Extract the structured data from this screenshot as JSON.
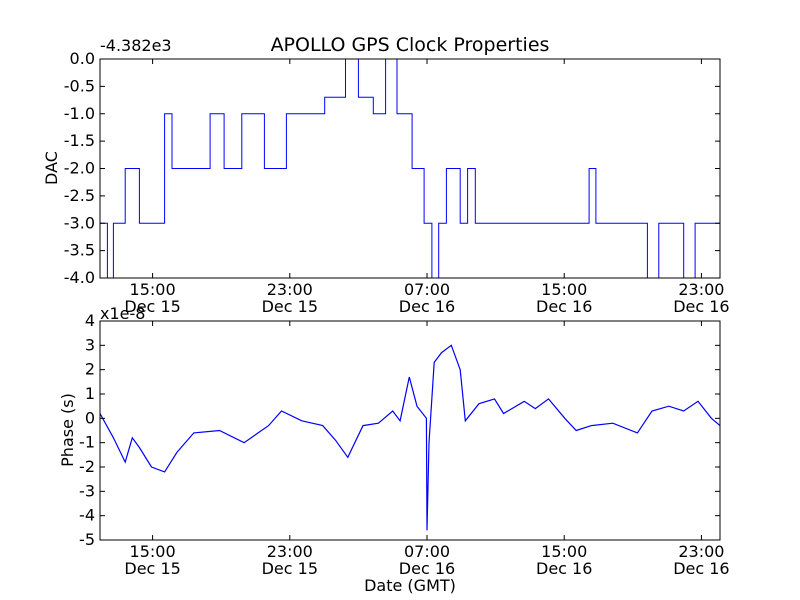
{
  "figure": {
    "title": "APOLLO GPS Clock Properties",
    "xlabel": "Date (GMT)"
  },
  "chart_data": [
    {
      "type": "line",
      "name": "dac",
      "ylabel": "DAC",
      "offset_label": "-4.382e3",
      "ylim": [
        -4.0,
        0.0
      ],
      "yticks": [
        "0.0",
        "-0.5",
        "-1.0",
        "-1.5",
        "-2.0",
        "-2.5",
        "-3.0",
        "-3.5",
        "-4.0"
      ],
      "ytick_values": [
        0.0,
        -0.5,
        -1.0,
        -1.5,
        -2.0,
        -2.5,
        -3.0,
        -3.5,
        -4.0
      ],
      "xticks": [
        {
          "time": "15:00",
          "date": "Dec 15"
        },
        {
          "time": "23:00",
          "date": "Dec 15"
        },
        {
          "time": "07:00",
          "date": "Dec 16"
        },
        {
          "time": "15:00",
          "date": "Dec 16"
        },
        {
          "time": "23:00",
          "date": "Dec 16"
        }
      ],
      "xlim": [
        "Dec 15 11:56",
        "Dec 17 00:05"
      ],
      "color": "#0000ff",
      "grid": false,
      "x": [
        "Dec 15 11:56",
        "Dec 15 12:22",
        "Dec 15 12:43",
        "Dec 15 13:24",
        "Dec 15 14:14",
        "Dec 15 15:42",
        "Dec 15 16:08",
        "Dec 15 16:51",
        "Dec 15 18:21",
        "Dec 15 19:10",
        "Dec 15 20:12",
        "Dec 15 21:31",
        "Dec 15 22:48",
        "Dec 15 23:42",
        "Dec 16 00:29",
        "Dec 16 01:02",
        "Dec 16 02:15",
        "Dec 16 03:00",
        "Dec 16 03:52",
        "Dec 16 04:35",
        "Dec 16 05:15",
        "Dec 16 05:42",
        "Dec 16 06:08",
        "Dec 16 06:50",
        "Dec 16 07:17",
        "Dec 16 07:41",
        "Dec 16 08:08",
        "Dec 16 08:56",
        "Dec 16 09:22",
        "Dec 16 09:49",
        "Dec 16 10:02",
        "Dec 16 12:49",
        "Dec 16 16:27",
        "Dec 16 16:51",
        "Dec 16 17:24",
        "Dec 16 19:51",
        "Dec 16 20:31",
        "Dec 16 21:58",
        "Dec 16 22:38",
        "Dec 17 00:05"
      ],
      "y": [
        -3.0,
        -4.0,
        -3.0,
        -2.0,
        -3.0,
        -1.0,
        -2.0,
        -2.0,
        -1.0,
        -2.0,
        -1.0,
        -2.0,
        -1.0,
        -1.0,
        -1.0,
        -0.7,
        0.0,
        -0.7,
        -1.0,
        0.0,
        -1.0,
        -1.0,
        -2.0,
        -3.0,
        -4.0,
        -3.0,
        -2.0,
        -3.0,
        -2.0,
        -3.0,
        -3.0,
        -3.0,
        -2.0,
        -3.0,
        -3.0,
        -4.0,
        -3.0,
        -4.0,
        -3.0,
        -4.0
      ]
    },
    {
      "type": "line",
      "name": "phase",
      "ylabel": "Phase (s)",
      "offset_label": "x1e-8",
      "ylim": [
        -5,
        4
      ],
      "yticks": [
        "4",
        "3",
        "2",
        "1",
        "0",
        "-1",
        "-2",
        "-3",
        "-4",
        "-5"
      ],
      "ytick_values": [
        4,
        3,
        2,
        1,
        0,
        -1,
        -2,
        -3,
        -4,
        -5
      ],
      "xticks": [
        {
          "time": "15:00",
          "date": "Dec 15"
        },
        {
          "time": "23:00",
          "date": "Dec 15"
        },
        {
          "time": "07:00",
          "date": "Dec 16"
        },
        {
          "time": "15:00",
          "date": "Dec 16"
        },
        {
          "time": "23:00",
          "date": "Dec 16"
        }
      ],
      "xlim": [
        "Dec 15 11:56",
        "Dec 17 00:05"
      ],
      "color": "#0000ff",
      "grid": false,
      "x": [
        "Dec 15 11:56",
        "Dec 15 12:43",
        "Dec 15 13:24",
        "Dec 15 13:49",
        "Dec 15 14:14",
        "Dec 15 14:56",
        "Dec 15 15:42",
        "Dec 15 16:25",
        "Dec 15 17:24",
        "Dec 15 18:54",
        "Dec 15 20:20",
        "Dec 15 21:46",
        "Dec 15 22:31",
        "Dec 15 23:42",
        "Dec 16 00:55",
        "Dec 16 01:40",
        "Dec 16 02:23",
        "Dec 16 03:16",
        "Dec 16 04:10",
        "Dec 16 05:00",
        "Dec 16 05:26",
        "Dec 16 05:58",
        "Dec 16 06:25",
        "Dec 16 06:58",
        "Dec 16 07:00",
        "Dec 16 07:07",
        "Dec 16 07:25",
        "Dec 16 07:51",
        "Dec 16 08:25",
        "Dec 16 08:56",
        "Dec 16 09:14",
        "Dec 16 10:02",
        "Dec 16 10:56",
        "Dec 16 11:28",
        "Dec 16 12:40",
        "Dec 16 13:19",
        "Dec 16 14:05",
        "Dec 16 15:02",
        "Dec 16 15:42",
        "Dec 16 16:35",
        "Dec 16 17:50",
        "Dec 16 19:16",
        "Dec 16 20:07",
        "Dec 16 21:06",
        "Dec 16 21:58",
        "Dec 16 22:48",
        "Dec 16 23:35",
        "Dec 17 00:05"
      ],
      "y": [
        0.2,
        -0.8,
        -1.8,
        -0.8,
        -1.2,
        -2.0,
        -2.2,
        -1.4,
        -0.6,
        -0.5,
        -1.0,
        -0.3,
        0.3,
        -0.1,
        -0.3,
        -0.9,
        -1.6,
        -0.3,
        -0.2,
        0.3,
        -0.1,
        1.7,
        0.5,
        0.0,
        -4.6,
        -1.0,
        2.3,
        2.7,
        3.0,
        2.0,
        -0.1,
        0.6,
        0.8,
        0.2,
        0.7,
        0.4,
        0.8,
        0.0,
        -0.5,
        -0.3,
        -0.2,
        -0.6,
        0.3,
        0.5,
        0.3,
        0.7,
        0.0,
        -0.3
      ]
    }
  ]
}
